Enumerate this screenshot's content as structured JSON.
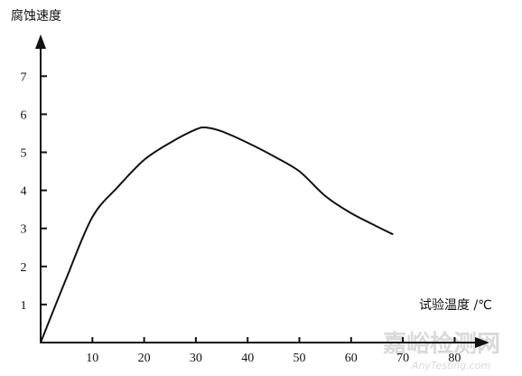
{
  "chart_data": {
    "type": "line",
    "title": "",
    "ylabel": "腐蚀速度",
    "xlabel": "试验温度 /℃",
    "x_ticks": [
      10,
      20,
      30,
      40,
      50,
      60,
      70,
      80
    ],
    "y_ticks": [
      1,
      2,
      3,
      4,
      5,
      6,
      7
    ],
    "xlim": [
      0,
      88
    ],
    "ylim": [
      0,
      8
    ],
    "grid": false,
    "series": [
      {
        "values_x": [
          0,
          5,
          10,
          15,
          20,
          25,
          30,
          32,
          35,
          40,
          45,
          50,
          55,
          60,
          65,
          68
        ],
        "values_y": [
          0,
          1.7,
          3.3,
          4.1,
          4.8,
          5.25,
          5.6,
          5.65,
          5.55,
          5.25,
          4.9,
          4.5,
          3.85,
          3.4,
          3.05,
          2.85
        ]
      }
    ]
  },
  "watermark": {
    "main": "嘉峪检测网",
    "sub": "AnyTesting.com"
  },
  "colors": {
    "line": "#111111",
    "watermark": "#d9d9d9"
  }
}
